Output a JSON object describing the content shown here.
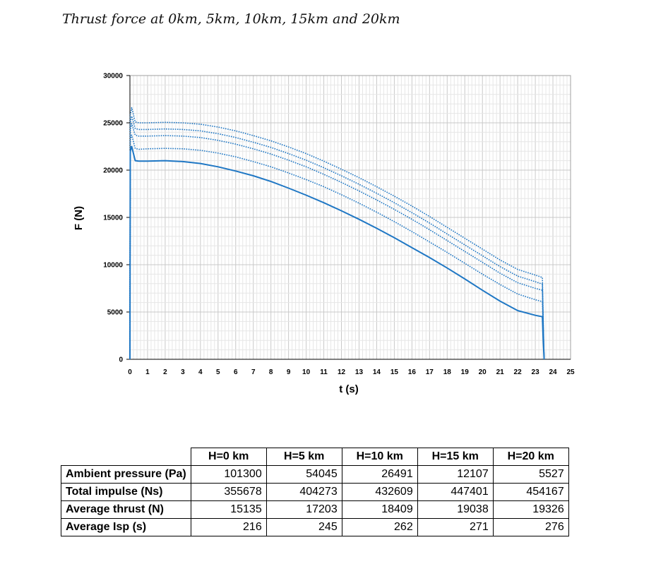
{
  "title": "Thrust force at 0km, 5km, 10km, 15km and 20km",
  "chart_data": {
    "type": "line",
    "xlabel": "t (s)",
    "ylabel": "F (N)",
    "xlim": [
      0,
      25
    ],
    "ylim": [
      0,
      30000
    ],
    "xticks": [
      "0",
      "1",
      "2",
      "3",
      "4",
      "5",
      "6",
      "7",
      "8",
      "9",
      "10",
      "11",
      "12",
      "13",
      "14",
      "15",
      "16",
      "17",
      "18",
      "19",
      "20",
      "21",
      "22",
      "23",
      "24",
      "25"
    ],
    "yticks": [
      "0",
      "5000",
      "10000",
      "15000",
      "20000",
      "25000",
      "30000"
    ],
    "grid": true,
    "legend": "none",
    "color": "#1f77c4",
    "series": [
      {
        "style": "solid",
        "x": [
          0,
          0.02,
          0.1,
          0.3,
          0.5,
          1,
          2,
          3,
          4,
          5,
          6,
          7,
          8,
          9,
          10,
          11,
          12,
          13,
          14,
          15,
          16,
          17,
          18,
          19,
          20,
          21,
          22,
          23,
          23.4,
          23.45,
          23.5
        ],
        "y": [
          0,
          22000,
          22500,
          21000,
          20950,
          20950,
          21000,
          20900,
          20700,
          20350,
          19900,
          19400,
          18800,
          18100,
          17350,
          16550,
          15700,
          14800,
          13850,
          12850,
          11800,
          10750,
          9650,
          8500,
          7300,
          6150,
          5150,
          4650,
          4500,
          2000,
          0
        ]
      },
      {
        "style": "dotted",
        "x": [
          0,
          0.02,
          0.1,
          0.3,
          0.5,
          1,
          2,
          3,
          4,
          5,
          6,
          7,
          8,
          9,
          10,
          11,
          12,
          13,
          14,
          15,
          16,
          17,
          18,
          19,
          20,
          21,
          22,
          23,
          23.4,
          23.45,
          23.5
        ],
        "y": [
          0,
          23200,
          23700,
          22300,
          22200,
          22250,
          22300,
          22250,
          22100,
          21800,
          21400,
          20900,
          20350,
          19700,
          19000,
          18250,
          17400,
          16500,
          15550,
          14550,
          13500,
          12400,
          11300,
          10150,
          9000,
          7900,
          6900,
          6300,
          6100,
          3000,
          0
        ]
      },
      {
        "style": "dotted",
        "x": [
          0,
          0.02,
          0.1,
          0.3,
          0.5,
          1,
          2,
          3,
          4,
          5,
          6,
          7,
          8,
          9,
          10,
          11,
          12,
          13,
          14,
          15,
          16,
          17,
          18,
          19,
          20,
          21,
          22,
          23,
          23.4,
          23.45,
          23.5
        ],
        "y": [
          0,
          24300,
          24900,
          23700,
          23600,
          23600,
          23650,
          23600,
          23450,
          23150,
          22750,
          22250,
          21700,
          21050,
          20350,
          19550,
          18700,
          17800,
          16850,
          15850,
          14800,
          13700,
          12550,
          11400,
          10250,
          9100,
          8100,
          7500,
          7300,
          3500,
          0
        ]
      },
      {
        "style": "dotted",
        "x": [
          0,
          0.02,
          0.1,
          0.3,
          0.5,
          1,
          2,
          3,
          4,
          5,
          6,
          7,
          8,
          9,
          10,
          11,
          12,
          13,
          14,
          15,
          16,
          17,
          18,
          19,
          20,
          21,
          22,
          23,
          23.4,
          23.45,
          23.5
        ],
        "y": [
          0,
          25000,
          25700,
          24400,
          24300,
          24300,
          24350,
          24300,
          24150,
          23850,
          23450,
          22950,
          22400,
          21750,
          21050,
          20250,
          19400,
          18500,
          17550,
          16550,
          15500,
          14400,
          13250,
          12100,
          10950,
          9800,
          8800,
          8200,
          7950,
          3800,
          0
        ]
      },
      {
        "style": "dotted",
        "x": [
          0,
          0.02,
          0.1,
          0.3,
          0.5,
          1,
          2,
          3,
          4,
          5,
          6,
          7,
          8,
          9,
          10,
          11,
          12,
          13,
          14,
          15,
          16,
          17,
          18,
          19,
          20,
          21,
          22,
          23,
          23.4,
          23.45,
          23.5
        ],
        "y": [
          0,
          25800,
          26600,
          25100,
          25000,
          25000,
          25050,
          25000,
          24850,
          24550,
          24150,
          23650,
          23100,
          22450,
          21750,
          20950,
          20100,
          19200,
          18250,
          17250,
          16200,
          15100,
          13950,
          12800,
          11650,
          10500,
          9500,
          8900,
          8650,
          4000,
          0
        ]
      }
    ]
  },
  "table": {
    "headers": [
      "H=0 km",
      "H=5 km",
      "H=10 km",
      "H=15 km",
      "H=20 km"
    ],
    "rows": [
      {
        "label": "Ambient pressure (Pa)",
        "values": [
          "101300",
          "54045",
          "26491",
          "12107",
          "5527"
        ]
      },
      {
        "label": "Total impulse (Ns)",
        "values": [
          "355678",
          "404273",
          "432609",
          "447401",
          "454167"
        ]
      },
      {
        "label": "Average thrust (N)",
        "values": [
          "15135",
          "17203",
          "18409",
          "19038",
          "19326"
        ]
      },
      {
        "label": "Average Isp (s)",
        "values": [
          "216",
          "245",
          "262",
          "271",
          "276"
        ]
      }
    ]
  }
}
